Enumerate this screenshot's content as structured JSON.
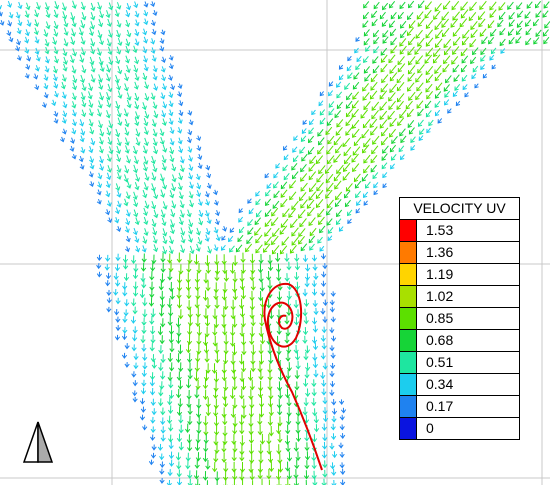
{
  "legend": {
    "title": "VELOCITY UV",
    "entries": [
      {
        "label": "1.53",
        "color": "#ff0000"
      },
      {
        "label": "1.36",
        "color": "#ff7a00"
      },
      {
        "label": "1.19",
        "color": "#ffd400"
      },
      {
        "label": "1.02",
        "color": "#a8e000"
      },
      {
        "label": "0.85",
        "color": "#5ce000"
      },
      {
        "label": "0.68",
        "color": "#16d437"
      },
      {
        "label": "0.51",
        "color": "#1ee6a0"
      },
      {
        "label": "0.34",
        "color": "#1ccdee"
      },
      {
        "label": "0.17",
        "color": "#1f82f0"
      },
      {
        "label": "0",
        "color": "#0a14e0"
      }
    ]
  },
  "north_arrow": {
    "icon": "north-arrow-icon"
  },
  "streamline_color": "#e00000"
}
